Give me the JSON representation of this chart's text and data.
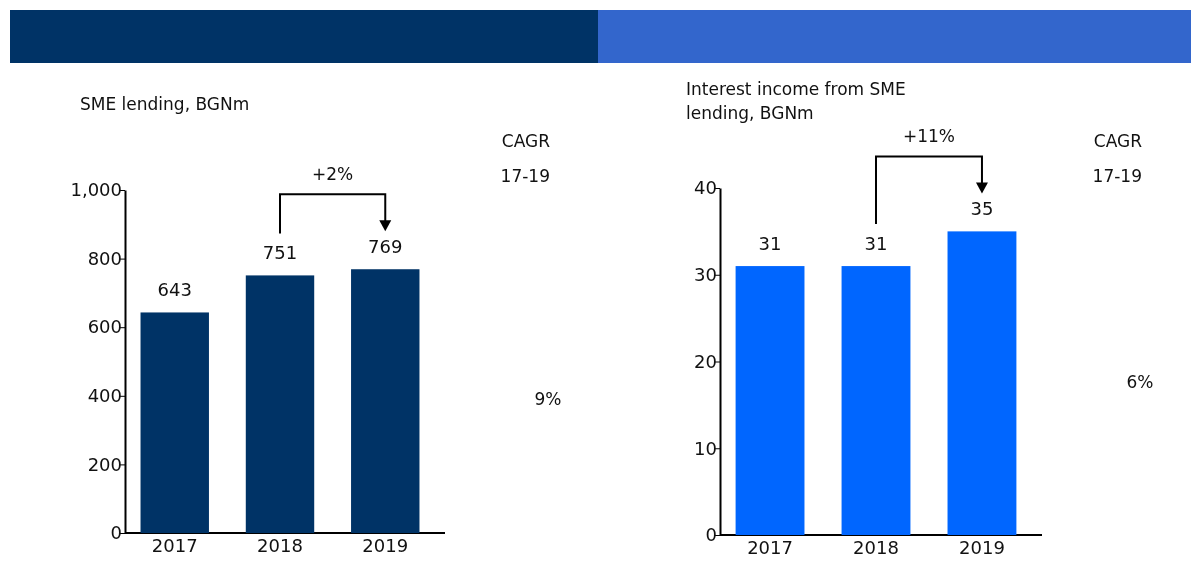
{
  "chart_data": [
    {
      "type": "bar",
      "title": "SME lending, BGNm",
      "categories": [
        "2017",
        "2018",
        "2019"
      ],
      "values": [
        643,
        751,
        769
      ],
      "color": "#003366",
      "ylim": [
        0,
        1000
      ],
      "yticks": [
        0,
        200,
        400,
        600,
        800,
        {
          "value": 1000,
          "label": "1,000"
        }
      ],
      "grid": false,
      "data_labels": true,
      "annotations": [
        "+2%",
        "CAGR",
        "17-19",
        "9%"
      ]
    },
    {
      "type": "bar",
      "title": "Interest income from SME lending, BGNm",
      "categories": [
        "2017",
        "2018",
        "2019"
      ],
      "values": [
        31,
        31,
        35
      ],
      "color": "#0066ff",
      "ylim": [
        0,
        40
      ],
      "yticks": [
        0,
        10,
        20,
        30,
        40
      ],
      "grid": false,
      "data_labels": true,
      "annotations": [
        "+11%",
        "CAGR",
        "17-19",
        "6%"
      ]
    }
  ]
}
